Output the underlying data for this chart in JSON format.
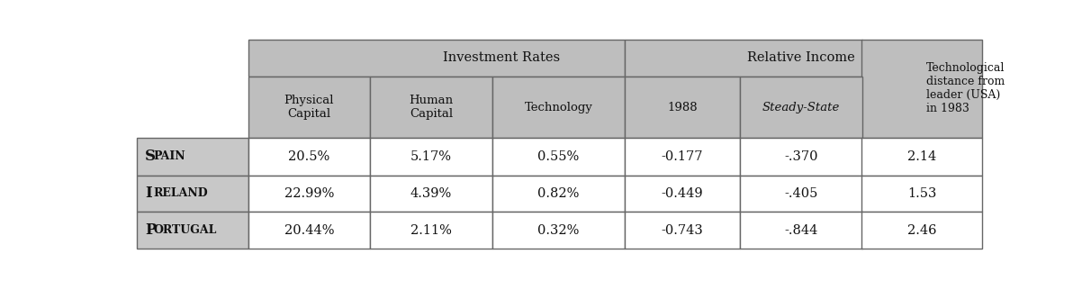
{
  "header_group1": "Investment Rates",
  "header_group2": "Relative Income",
  "header_group3": "Technological\ndistance from\nleader (USA)\nin 1983",
  "col_headers": [
    "Physical\nCapital",
    "Human\nCapital",
    "Technology",
    "1988",
    "Steady-State"
  ],
  "rows": [
    [
      "20.5%",
      "5.17%",
      "0.55%",
      "-0.177",
      "-.370",
      "2.14"
    ],
    [
      "22.99%",
      "4.39%",
      "0.82%",
      "-0.449",
      "-.405",
      "1.53"
    ],
    [
      "20.44%",
      "2.11%",
      "0.32%",
      "-0.743",
      "-.844",
      "2.46"
    ]
  ],
  "row_label_first": [
    "S",
    "I",
    "P"
  ],
  "row_label_rest": [
    "PAIN",
    "RELAND",
    "ORTUGAL"
  ],
  "header_bg": "#bebebe",
  "data_bg": "#ffffff",
  "label_col_bg": "#c8c8c8",
  "border_color": "#666666",
  "text_color": "#111111",
  "fig_width": 12.12,
  "fig_height": 3.12,
  "dpi": 100
}
